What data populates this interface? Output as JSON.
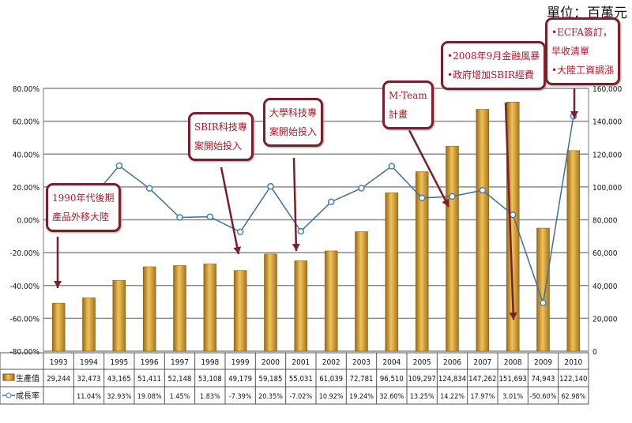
{
  "unit_label": "單位：百萬元",
  "annotations": [
    {
      "lines": [
        "1990年代後期",
        "產品外移大陸"
      ]
    },
    {
      "lines": [
        "SBIR科技專",
        "案開始投入"
      ]
    },
    {
      "lines": [
        "大學科技專",
        "案開始投入"
      ]
    },
    {
      "lines": [
        "M-Team",
        "計畫"
      ]
    },
    {
      "lines": [
        "•2008年9月金融風暴",
        "•政府增加SBIR經費"
      ]
    },
    {
      "lines": [
        "•ECFA簽訂，",
        "早收清單",
        "•大陸工資調漲"
      ]
    }
  ],
  "chart_data": {
    "type": "bar+line",
    "categories": [
      "1993",
      "1994",
      "1995",
      "1996",
      "1997",
      "1998",
      "1999",
      "2000",
      "2001",
      "2002",
      "2003",
      "2004",
      "2005",
      "2006",
      "2007",
      "2008",
      "2009",
      "2010"
    ],
    "series": [
      {
        "name": "生產值",
        "type": "bar",
        "axis": "right",
        "color": "#c8962e",
        "values": [
          29244,
          32473,
          43165,
          51411,
          52148,
          53108,
          49179,
          59185,
          55031,
          61039,
          72781,
          96510,
          109297,
          124834,
          147262,
          151693,
          74943,
          122140
        ],
        "labels": [
          "29,244",
          "32,473",
          "43,165",
          "51,411",
          "52,148",
          "53,108",
          "49,179",
          "59,185",
          "55,031",
          "61,039",
          "72,781",
          "96,510",
          "109,297",
          "124,834",
          "147,262",
          "151,693",
          "74,943",
          "122,140"
        ]
      },
      {
        "name": "成長率",
        "type": "line",
        "axis": "left",
        "color": "#4a7fb0",
        "values": [
          null,
          11.04,
          32.93,
          19.08,
          1.45,
          1.83,
          -7.39,
          20.35,
          -7.02,
          10.92,
          19.24,
          32.6,
          13.25,
          14.22,
          17.97,
          3.01,
          -50.6,
          62.98
        ],
        "labels": [
          "",
          "11.04%",
          "32.93%",
          "19.08%",
          "1.45%",
          "1.83%",
          "-7.39%",
          "20.35%",
          "-7.02%",
          "10.92%",
          "19.24%",
          "32.60%",
          "13.25%",
          "14.22%",
          "17.97%",
          "3.01%",
          "-50.60%",
          "62.98%"
        ]
      }
    ],
    "left_axis": {
      "range": [
        -80,
        80
      ],
      "ticks": [
        "-80.00%",
        "-60.00%",
        "-40.00%",
        "-20.00%",
        "0.00%",
        "20.00%",
        "40.00%",
        "60.00%",
        "80.00%"
      ]
    },
    "right_axis": {
      "range": [
        0,
        160000
      ],
      "ticks": [
        "0",
        "20,000",
        "40,000",
        "60,000",
        "80,000",
        "100,000",
        "120,000",
        "140,000",
        "160,000"
      ]
    },
    "grid": true,
    "legend": "data-table"
  }
}
